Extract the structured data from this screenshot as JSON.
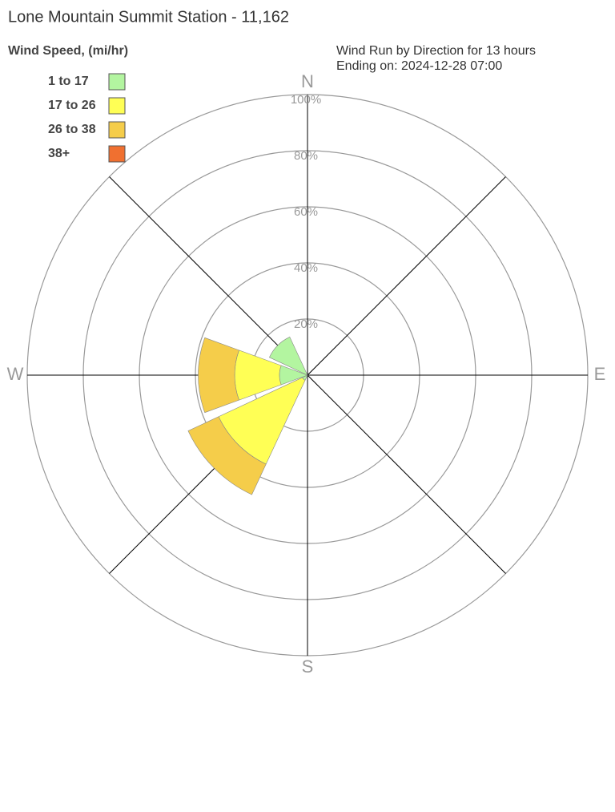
{
  "chart_data": {
    "type": "rose",
    "title": "Lone Mountain Summit Station - 11,162",
    "legend_title": "Wind Speed, (mi/hr)",
    "subtitle": [
      "Wind Run by Direction for 13 hours",
      "Ending on: 2024-12-28 07:00"
    ],
    "categories": [
      "N",
      null,
      "E",
      null,
      "S",
      null,
      "W",
      null
    ],
    "series": [
      {
        "name": "1 to 17",
        "color": "#b3f5a0",
        "values": [
          0,
          0,
          0,
          0,
          0,
          2,
          10,
          15
        ]
      },
      {
        "name": "17 to 26",
        "color": "#ffff55",
        "values": [
          0,
          0,
          0,
          0,
          0,
          33,
          16,
          0
        ]
      },
      {
        "name": "26 to 38",
        "color": "#f5cd4a",
        "values": [
          0,
          0,
          0,
          0,
          0,
          12,
          13,
          0
        ]
      },
      {
        "name": "38+",
        "color": "#f07030",
        "values": [
          0,
          0,
          0,
          0,
          0,
          0,
          0,
          0
        ]
      }
    ],
    "rlim": [
      0,
      100
    ],
    "rticks": [
      {
        "value": 20,
        "label": "20%"
      },
      {
        "value": 40,
        "label": "40%"
      },
      {
        "value": 60,
        "label": "60%"
      },
      {
        "value": 80,
        "label": "80%"
      },
      {
        "value": 100,
        "label": "100%"
      }
    ],
    "grid": true
  }
}
